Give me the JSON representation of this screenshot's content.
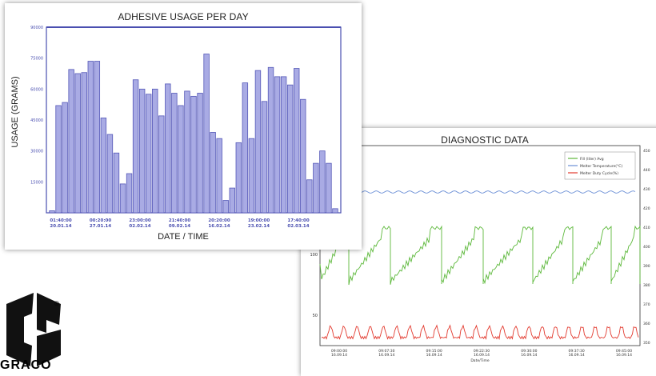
{
  "chart_data": [
    {
      "type": "bar",
      "title": "ADHESIVE USAGE PER DAY",
      "xlabel": "DATE / TIME",
      "ylabel": "USAGE (GRAMS)",
      "ylim": [
        0,
        90000
      ],
      "yticks": [
        "15000",
        "30000",
        "45000",
        "60000",
        "75000",
        "90000"
      ],
      "xticks": [
        {
          "time": "01:40:00",
          "date": "20.01.14"
        },
        {
          "time": "00:20:00",
          "date": "27.01.14"
        },
        {
          "time": "23:00:00",
          "date": "02.02.14"
        },
        {
          "time": "21:40:00",
          "date": "09.02.14"
        },
        {
          "time": "20:20:00",
          "date": "16.02.14"
        },
        {
          "time": "19:00:00",
          "date": "23.02.14"
        },
        {
          "time": "17:40:00",
          "date": "02.03.14"
        }
      ],
      "values": [
        1000,
        52000,
        53500,
        69500,
        67500,
        68000,
        73500,
        73500,
        46000,
        38000,
        29000,
        14000,
        19000,
        64500,
        60000,
        57500,
        60000,
        47000,
        62500,
        58000,
        52000,
        59000,
        56500,
        58000,
        77000,
        39000,
        36000,
        6000,
        12000,
        34000,
        63000,
        36000,
        69000,
        54000,
        70500,
        66000,
        66000,
        62000,
        70000,
        55000,
        16000,
        24000,
        30000,
        24000,
        2000
      ],
      "bar_color": "#a9abe4",
      "edge_color": "#5558b8",
      "grid": false
    },
    {
      "type": "line",
      "title": "DIAGNOSTIC DATA",
      "series": [
        {
          "name": "Fill (liter) Avg",
          "color": "#5cb83a"
        },
        {
          "name": "Melter Temperature(°C)",
          "color": "#6b8fd6"
        },
        {
          "name": "Melter Duty Cycle(%)",
          "color": "#e23a2f"
        }
      ],
      "left_yticks": [
        "100",
        "50"
      ],
      "right_yticks": [
        "450",
        "440",
        "430",
        "420",
        "410",
        "400",
        "390",
        "380",
        "370",
        "360",
        "350"
      ],
      "xticks": [
        {
          "time": "09:00:00",
          "date": "16.09.14"
        },
        {
          "time": "09:07:30",
          "date": "16.09.14"
        },
        {
          "time": "09:15:00",
          "date": "16.09.14"
        },
        {
          "time": "09:22:30",
          "date": "16.09.14"
        },
        {
          "time": "09:30:00",
          "date": "16.09.14"
        },
        {
          "time": "09:37:30",
          "date": "16.09.14"
        },
        {
          "time": "09:45:00",
          "date": "16.09.14"
        }
      ],
      "xlabel": "Date/Time"
    }
  ],
  "logo": {
    "text": "GRACO",
    "registered": "®",
    "color": "#111111"
  }
}
